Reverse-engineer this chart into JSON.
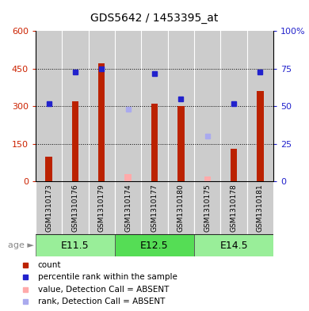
{
  "title": "GDS5642 / 1453395_at",
  "samples": [
    "GSM1310173",
    "GSM1310176",
    "GSM1310179",
    "GSM1310174",
    "GSM1310177",
    "GSM1310180",
    "GSM1310175",
    "GSM1310178",
    "GSM1310181"
  ],
  "count_values": [
    100,
    320,
    470,
    null,
    310,
    300,
    null,
    130,
    360
  ],
  "count_absent": [
    null,
    null,
    null,
    30,
    null,
    null,
    20,
    null,
    null
  ],
  "rank_values": [
    52,
    73,
    75,
    null,
    72,
    55,
    null,
    52,
    73
  ],
  "rank_absent": [
    null,
    null,
    null,
    48,
    null,
    null,
    30,
    null,
    null
  ],
  "ylim_left": [
    0,
    600
  ],
  "ylim_right": [
    0,
    100
  ],
  "yticks_left": [
    0,
    150,
    300,
    450,
    600
  ],
  "ytick_labels_left": [
    "0",
    "150",
    "300",
    "450",
    "600"
  ],
  "yticks_right": [
    0,
    25,
    50,
    75,
    100
  ],
  "ytick_labels_right": [
    "0",
    "25",
    "50",
    "75",
    "100%"
  ],
  "age_groups": [
    {
      "label": "E11.5",
      "start": 0,
      "end": 3
    },
    {
      "label": "E12.5",
      "start": 3,
      "end": 6
    },
    {
      "label": "E14.5",
      "start": 6,
      "end": 9
    }
  ],
  "bar_color": "#bb2200",
  "bar_absent_color": "#ffaaaa",
  "square_color": "#2222cc",
  "square_absent_color": "#aaaaee",
  "col_bg": "#cccccc",
  "plot_bg": "#ffffff",
  "age_bg": "#99ee99",
  "legend_items": [
    {
      "color": "#bb2200",
      "label": "count"
    },
    {
      "color": "#2222cc",
      "label": "percentile rank within the sample"
    },
    {
      "color": "#ffaaaa",
      "label": "value, Detection Call = ABSENT"
    },
    {
      "color": "#aaaaee",
      "label": "rank, Detection Call = ABSENT"
    }
  ]
}
